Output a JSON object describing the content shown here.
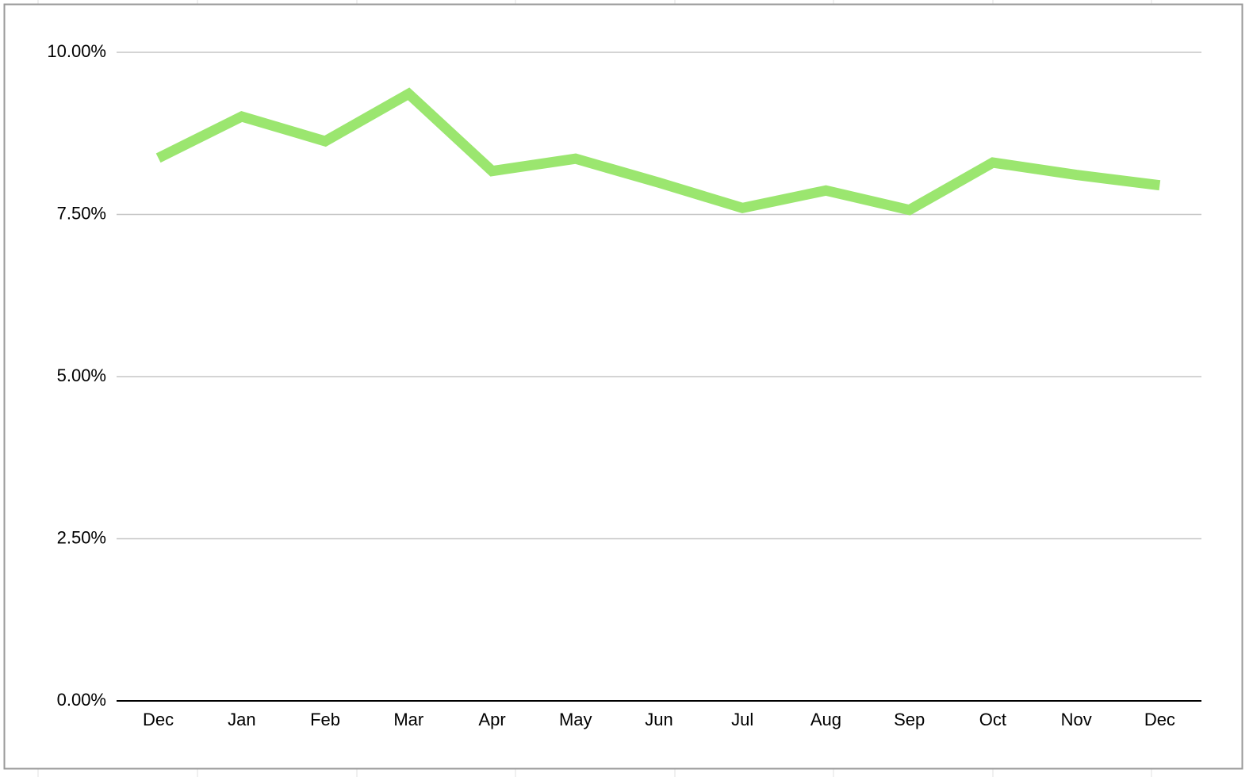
{
  "chart_data": {
    "type": "line",
    "categories": [
      "Dec",
      "Jan",
      "Feb",
      "Mar",
      "Apr",
      "May",
      "Jun",
      "Jul",
      "Aug",
      "Sep",
      "Oct",
      "Nov",
      "Dec"
    ],
    "series": [
      {
        "color": "#9be66f",
        "values": [
          8.37,
          9.01,
          8.63,
          9.36,
          8.17,
          8.36,
          7.99,
          7.6,
          7.87,
          7.57,
          8.3,
          8.11,
          7.95
        ]
      }
    ],
    "ylim": [
      0,
      10
    ],
    "yticks": [
      {
        "value": 0,
        "label": "0.00%"
      },
      {
        "value": 2.5,
        "label": "2.50%"
      },
      {
        "value": 5,
        "label": "5.00%"
      },
      {
        "value": 7.5,
        "label": "7.50%"
      },
      {
        "value": 10,
        "label": "10.00%"
      }
    ],
    "grid": true
  }
}
